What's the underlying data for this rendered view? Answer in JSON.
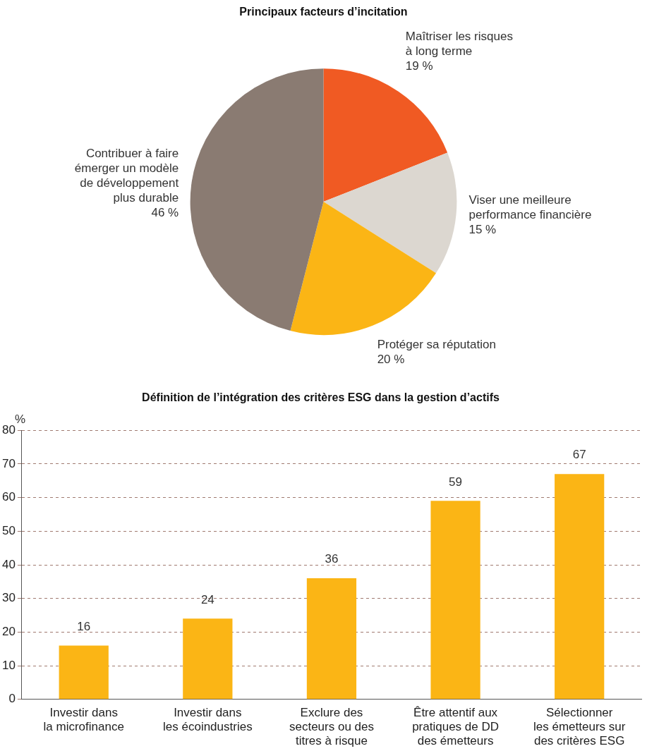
{
  "chart_data": [
    {
      "type": "pie",
      "title": "Principaux facteurs d’incitation",
      "categories": [
        "Maîtriser les risques\nà long terme",
        "Viser une meilleure\nperformance financière",
        "Protéger sa réputation",
        "Contribuer à faire\némerger un modèle\nde développement\nplus durable"
      ],
      "values": [
        19,
        15,
        20,
        46
      ],
      "colors": [
        "#f05a23",
        "#dcd7d0",
        "#fbb515",
        "#8a7b72"
      ],
      "value_labels": [
        "19 %",
        "15 %",
        "20 %",
        "46 %"
      ]
    },
    {
      "type": "bar",
      "title": "Définition de l’intégration des critères ESG dans la gestion d’actifs",
      "ylabel": "%",
      "categories": [
        "Investir dans\nla microfinance",
        "Investir dans\nles écoindustries",
        "Exclure des\nsecteurs ou des\ntitres à risque",
        "Être attentif aux\npratiques de DD\ndes émetteurs",
        "Sélectionner\nles émetteurs sur\ndes critères ESG"
      ],
      "values": [
        16,
        24,
        36,
        59,
        67
      ],
      "color": "#fbb515",
      "ylim": [
        0,
        80
      ],
      "yticks": [
        0,
        10,
        20,
        30,
        40,
        50,
        60,
        70,
        80
      ],
      "grid": "y",
      "data_labels": true
    }
  ]
}
